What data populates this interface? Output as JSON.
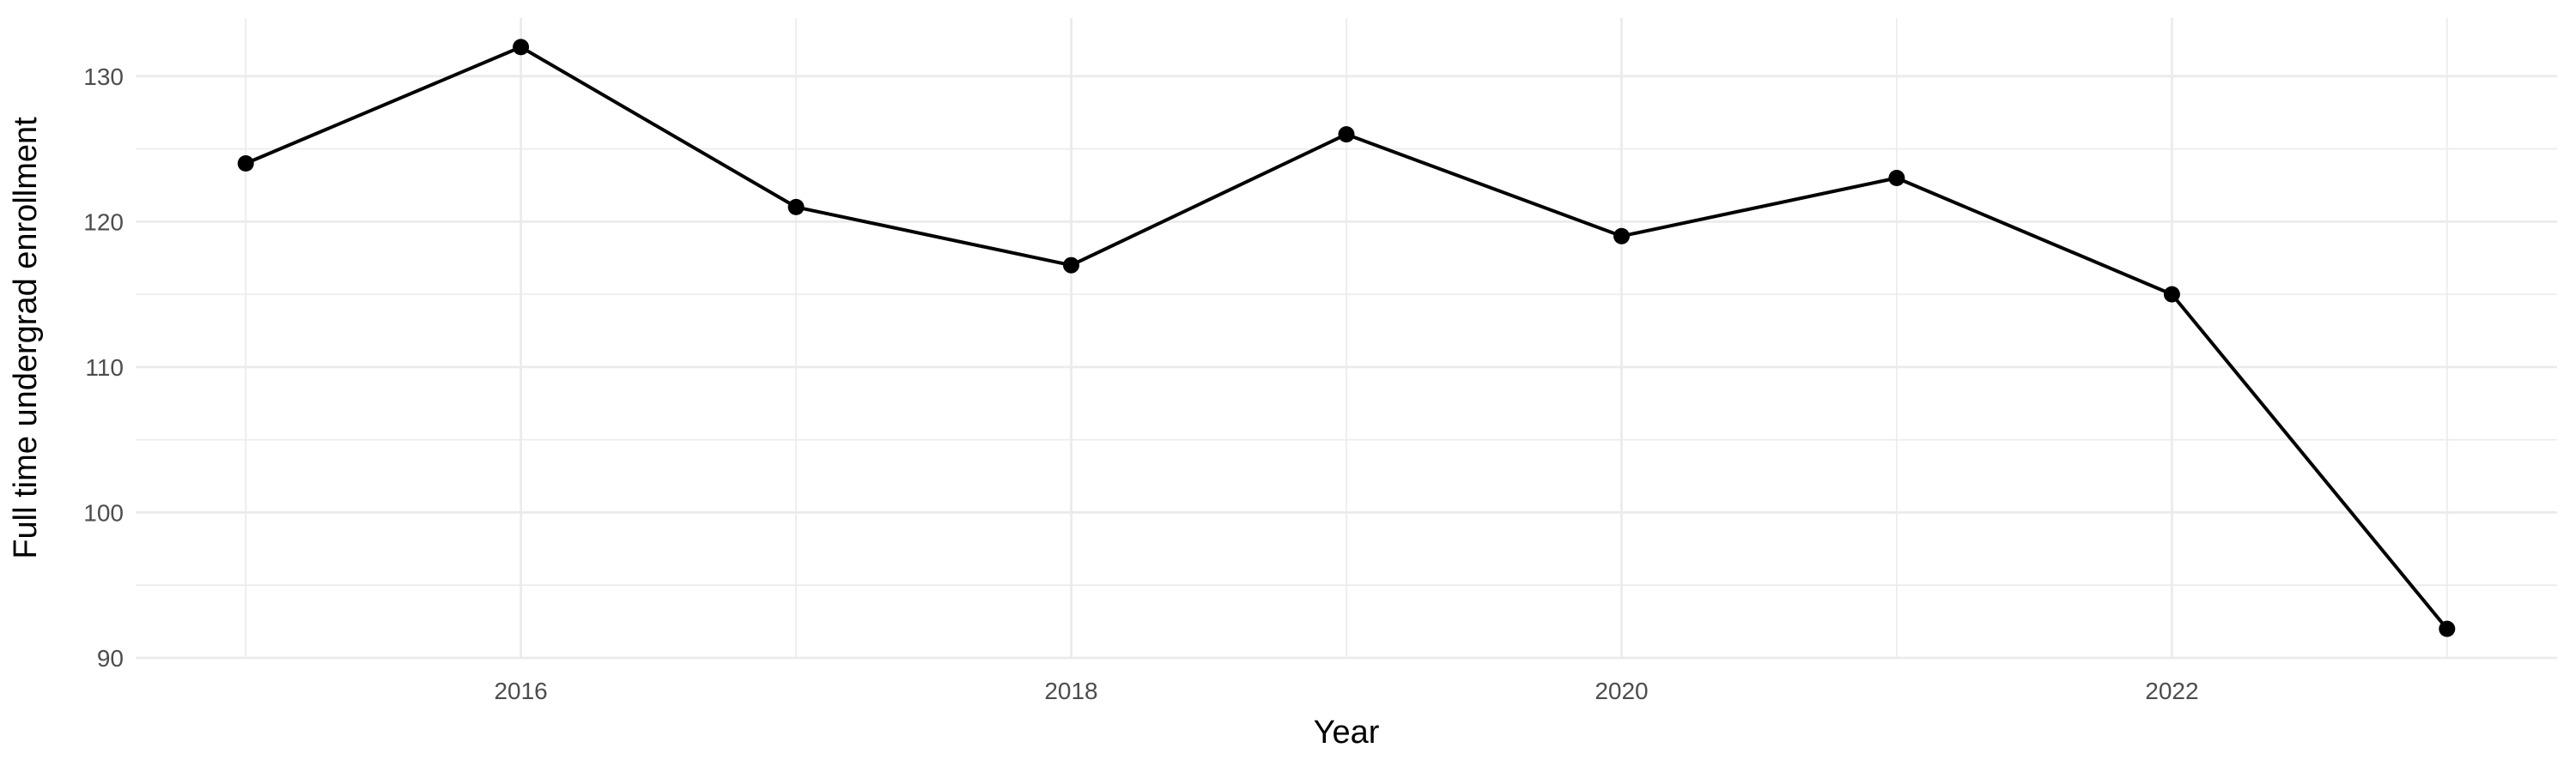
{
  "chart_data": {
    "type": "line",
    "title": "",
    "xlabel": "Year",
    "ylabel": "Full time undergrad enrollment",
    "x": [
      2015,
      2016,
      2017,
      2018,
      2019,
      2020,
      2021,
      2022,
      2023
    ],
    "series": [
      {
        "name": "Full time undergrad enrollment",
        "values": [
          124,
          132,
          121,
          117,
          126,
          119,
          123,
          115,
          92
        ]
      }
    ],
    "xlim": [
      2014.6,
      2023.4
    ],
    "ylim": [
      90,
      134
    ],
    "x_ticks": {
      "major": [
        2016,
        2018,
        2020,
        2022
      ],
      "minor": [
        2015,
        2017,
        2019,
        2021,
        2023
      ]
    },
    "y_ticks": {
      "major": [
        90,
        100,
        110,
        120,
        130
      ],
      "minor": [
        95,
        105,
        115,
        125
      ]
    },
    "grid": "major+minor",
    "legend": "none",
    "styles": {
      "background": "#FFFFFF",
      "grid_color": "#EBEBEB",
      "line_color": "#000000",
      "point_color": "#000000",
      "tick_label_color": "#4D4D4D",
      "axis_title_color": "#000000"
    }
  }
}
